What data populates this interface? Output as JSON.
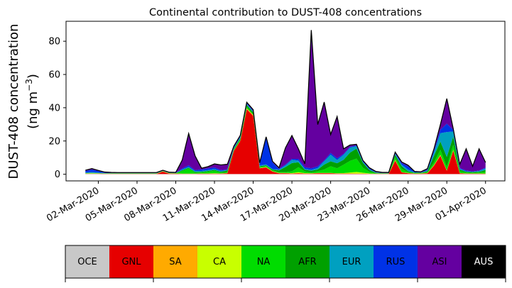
{
  "chart_data": {
    "type": "area",
    "stacked": true,
    "title": "Continental contribution to DUST-408 concentrations",
    "ylabel_line1": "DUST-408 concentration",
    "ylabel_line2": "(ng m",
    "ylabel_exp": "−3",
    "ylabel_close": ")",
    "ylim": [
      -4,
      92
    ],
    "yticks": [
      0,
      20,
      40,
      60,
      80
    ],
    "xlim": [
      "2020-02-28T12:00",
      "2020-04-02T12:00"
    ],
    "xtick_dates": [
      "2020-03-02",
      "2020-03-05",
      "2020-03-08",
      "2020-03-11",
      "2020-03-14",
      "2020-03-17",
      "2020-03-20",
      "2020-03-23",
      "2020-03-26",
      "2020-03-29",
      "2020-04-01"
    ],
    "xtick_labels": [
      "02-Mar-2020",
      "05-Mar-2020",
      "08-Mar-2020",
      "11-Mar-2020",
      "14-Mar-2020",
      "17-Mar-2020",
      "20-Mar-2020",
      "23-Mar-2020",
      "26-Mar-2020",
      "29-Mar-2020",
      "01-Apr-2020"
    ],
    "grid": false,
    "x": [
      "2020-03-01T00:00",
      "2020-03-01T12:00",
      "2020-03-02T00:00",
      "2020-03-02T12:00",
      "2020-03-03T00:00",
      "2020-03-03T12:00",
      "2020-03-04T00:00",
      "2020-03-04T12:00",
      "2020-03-05T00:00",
      "2020-03-05T12:00",
      "2020-03-06T00:00",
      "2020-03-06T12:00",
      "2020-03-07T00:00",
      "2020-03-07T12:00",
      "2020-03-08T00:00",
      "2020-03-08T12:00",
      "2020-03-09T00:00",
      "2020-03-09T12:00",
      "2020-03-10T00:00",
      "2020-03-10T12:00",
      "2020-03-11T00:00",
      "2020-03-11T12:00",
      "2020-03-12T00:00",
      "2020-03-12T12:00",
      "2020-03-13T00:00",
      "2020-03-13T12:00",
      "2020-03-14T00:00",
      "2020-03-14T12:00",
      "2020-03-15T00:00",
      "2020-03-15T12:00",
      "2020-03-16T00:00",
      "2020-03-16T12:00",
      "2020-03-17T00:00",
      "2020-03-17T12:00",
      "2020-03-18T00:00",
      "2020-03-18T12:00",
      "2020-03-19T00:00",
      "2020-03-19T12:00",
      "2020-03-20T00:00",
      "2020-03-20T12:00",
      "2020-03-21T00:00",
      "2020-03-21T12:00",
      "2020-03-22T00:00",
      "2020-03-22T12:00",
      "2020-03-23T00:00",
      "2020-03-23T12:00",
      "2020-03-24T00:00",
      "2020-03-24T12:00",
      "2020-03-25T00:00",
      "2020-03-25T12:00",
      "2020-03-26T00:00",
      "2020-03-26T12:00",
      "2020-03-27T00:00",
      "2020-03-27T12:00",
      "2020-03-28T00:00",
      "2020-03-28T12:00",
      "2020-03-29T00:00",
      "2020-03-29T12:00",
      "2020-03-30T00:00",
      "2020-03-30T12:00",
      "2020-03-31T00:00",
      "2020-03-31T12:00",
      "2020-04-01T00:00"
    ],
    "series": [
      {
        "name": "OCE",
        "color": "#c8c8c8",
        "values": [
          0.2,
          0.2,
          0.2,
          0.1,
          0.1,
          0.1,
          0.1,
          0.1,
          0.1,
          0.1,
          0.1,
          0.1,
          0.1,
          0.1,
          0.1,
          0.1,
          0.1,
          0.1,
          0.1,
          0.1,
          0.1,
          0.1,
          0.1,
          0.1,
          0.1,
          0.1,
          0.1,
          0.1,
          0.1,
          0.1,
          0.1,
          0.1,
          0.1,
          0.1,
          0.1,
          0.1,
          0.1,
          0.1,
          0.1,
          0.1,
          0.1,
          0.1,
          0.1,
          0.1,
          0.1,
          0.1,
          0.1,
          0.1,
          0.1,
          0.1,
          0.1,
          0.1,
          0.1,
          0.1,
          0.1,
          0.1,
          0.1,
          0.1,
          0.1,
          0.1,
          0.1,
          0.1,
          0.1
        ]
      },
      {
        "name": "GNL",
        "color": "#e60000",
        "values": [
          0.1,
          0.1,
          0.1,
          0.1,
          0.1,
          0.1,
          0.1,
          0.1,
          0.1,
          0.1,
          0.1,
          0.1,
          1.5,
          0.3,
          0.2,
          0.1,
          0.1,
          0.1,
          0.2,
          0.2,
          0.2,
          0.2,
          0.5,
          14.0,
          20.0,
          39.0,
          35.0,
          3.5,
          4.0,
          1.5,
          0.5,
          0.5,
          0.3,
          0.5,
          0.3,
          0.3,
          0.5,
          0.5,
          0.5,
          0.3,
          0.3,
          0.3,
          0.2,
          0.2,
          0.1,
          0.1,
          0.1,
          0.1,
          8.0,
          1.0,
          0.5,
          0.2,
          0.2,
          0.5,
          5.0,
          11.0,
          2.0,
          14.0,
          0.5,
          0.2,
          0.2,
          0.2,
          0.2
        ]
      },
      {
        "name": "SA",
        "color": "#ffaa00",
        "values": [
          0.1,
          0.1,
          0.1,
          0.1,
          0.1,
          0.1,
          0.1,
          0.1,
          0.1,
          0.1,
          0.1,
          0.1,
          0.1,
          0.1,
          0.1,
          0.1,
          0.1,
          0.1,
          0.1,
          0.1,
          0.1,
          0.1,
          0.1,
          0.1,
          0.1,
          0.5,
          0.5,
          0.1,
          0.1,
          0.1,
          0.1,
          0.1,
          0.1,
          0.1,
          0.1,
          0.1,
          0.1,
          0.1,
          0.1,
          0.1,
          0.1,
          0.1,
          0.1,
          0.1,
          0.1,
          0.1,
          0.1,
          0.1,
          0.5,
          0.1,
          0.1,
          0.1,
          0.1,
          0.1,
          0.3,
          0.5,
          0.2,
          0.5,
          0.1,
          0.1,
          0.1,
          0.1,
          0.1
        ]
      },
      {
        "name": "CA",
        "color": "#c8ff00",
        "values": [
          0.1,
          0.2,
          0.1,
          0.1,
          0.1,
          0.1,
          0.1,
          0.1,
          0.1,
          0.1,
          0.1,
          0.1,
          0.1,
          0.1,
          0.1,
          0.1,
          0.1,
          0.1,
          0.1,
          0.1,
          0.2,
          0.1,
          0.1,
          0.1,
          0.1,
          0.1,
          0.1,
          0.1,
          0.2,
          0.1,
          0.1,
          0.1,
          0.2,
          0.5,
          0.2,
          0.1,
          0.1,
          0.1,
          0.1,
          0.1,
          0.2,
          0.5,
          1.0,
          0.5,
          0.2,
          0.1,
          0.1,
          0.1,
          0.1,
          0.1,
          0.1,
          0.1,
          0.1,
          0.1,
          0.1,
          0.1,
          0.1,
          0.1,
          0.1,
          0.1,
          0.1,
          0.1,
          0.1
        ]
      },
      {
        "name": "NA",
        "color": "#00dc00",
        "values": [
          0.1,
          0.1,
          0.1,
          0.1,
          0.1,
          0.1,
          0.1,
          0.1,
          0.1,
          0.1,
          0.1,
          0.1,
          0.1,
          0.1,
          0.1,
          1.5,
          3.0,
          0.5,
          0.5,
          1.0,
          1.5,
          0.5,
          0.5,
          0.5,
          1.0,
          1.0,
          0.5,
          0.5,
          0.5,
          0.5,
          0.5,
          0.5,
          1.0,
          3.0,
          1.0,
          0.5,
          1.0,
          2.0,
          4.0,
          3.0,
          5.0,
          7.0,
          8.0,
          3.0,
          1.0,
          0.2,
          0.1,
          0.1,
          1.5,
          2.0,
          0.5,
          0.2,
          0.2,
          0.5,
          1.5,
          3.0,
          2.0,
          3.0,
          1.0,
          0.5,
          0.3,
          0.5,
          1.0
        ]
      },
      {
        "name": "AFR",
        "color": "#00a000",
        "values": [
          0.1,
          0.1,
          0.1,
          0.1,
          0.1,
          0.1,
          0.1,
          0.1,
          0.1,
          0.1,
          0.1,
          0.1,
          0.1,
          0.1,
          0.1,
          0.5,
          0.5,
          0.5,
          0.5,
          0.5,
          0.5,
          0.5,
          1.0,
          0.5,
          0.5,
          1.0,
          1.0,
          0.5,
          0.5,
          0.5,
          1.0,
          3.0,
          5.0,
          3.0,
          1.0,
          1.0,
          1.0,
          3.0,
          3.0,
          3.0,
          3.0,
          5.0,
          6.0,
          3.0,
          1.0,
          0.3,
          0.1,
          0.1,
          1.5,
          1.5,
          0.5,
          0.2,
          0.2,
          0.5,
          4.0,
          5.0,
          6.0,
          5.0,
          1.0,
          0.5,
          0.5,
          0.5,
          1.0
        ]
      },
      {
        "name": "EUR",
        "color": "#00a0c0",
        "values": [
          0.3,
          0.5,
          0.3,
          0.1,
          0.1,
          0.1,
          0.1,
          0.1,
          0.1,
          0.1,
          0.1,
          0.1,
          0.1,
          0.1,
          0.1,
          0.5,
          0.5,
          0.5,
          0.5,
          0.5,
          0.5,
          0.5,
          0.3,
          0.5,
          0.5,
          0.5,
          0.5,
          0.5,
          0.5,
          0.3,
          0.5,
          1.0,
          2.0,
          1.0,
          0.5,
          0.5,
          1.0,
          2.0,
          4.0,
          2.0,
          3.0,
          3.0,
          1.5,
          0.5,
          0.5,
          0.2,
          0.1,
          0.1,
          0.5,
          1.0,
          1.0,
          0.2,
          0.1,
          0.5,
          2.0,
          5.0,
          15.0,
          3.0,
          0.5,
          0.2,
          0.2,
          0.5,
          1.0
        ]
      },
      {
        "name": "RUS",
        "color": "#0032e6",
        "values": [
          1.0,
          1.5,
          1.0,
          0.3,
          0.1,
          0.1,
          0.1,
          0.1,
          0.1,
          0.1,
          0.1,
          0.1,
          0.1,
          0.1,
          0.1,
          0.5,
          1.0,
          0.5,
          1.0,
          1.0,
          1.0,
          0.5,
          0.3,
          0.5,
          0.5,
          0.5,
          0.5,
          1.0,
          16.0,
          4.0,
          0.5,
          0.5,
          0.5,
          1.0,
          1.0,
          1.0,
          1.0,
          0.5,
          1.0,
          1.0,
          0.5,
          0.5,
          0.5,
          0.5,
          0.5,
          0.2,
          0.1,
          0.1,
          0.5,
          1.0,
          2.0,
          0.3,
          0.1,
          0.5,
          1.0,
          2.0,
          5.0,
          1.0,
          0.5,
          0.5,
          0.2,
          0.2,
          0.5
        ]
      },
      {
        "name": "ASI",
        "color": "#6400a0",
        "values": [
          0.3,
          0.5,
          0.2,
          0.2,
          0.2,
          0.1,
          0.1,
          0.1,
          0.1,
          0.1,
          0.1,
          0.1,
          0.1,
          0.1,
          0.1,
          5.0,
          19.0,
          8.5,
          0.5,
          1.0,
          2.0,
          3.0,
          3.0,
          0.5,
          0.5,
          0.5,
          0.5,
          0.5,
          0.5,
          0.5,
          0.5,
          10.0,
          14.0,
          6.0,
          2.0,
          83.0,
          25.0,
          35.0,
          11.0,
          25.0,
          3.0,
          1.0,
          0.5,
          0.3,
          0.3,
          0.3,
          0.2,
          0.2,
          0.5,
          0.5,
          0.5,
          0.2,
          0.3,
          0.5,
          1.0,
          3.0,
          15.0,
          0.5,
          2.0,
          13.0,
          3.0,
          13.0,
          3.0
        ]
      },
      {
        "name": "AUS",
        "color": "#000000",
        "values": [
          0.1,
          0.1,
          0.1,
          0.1,
          0.1,
          0.1,
          0.1,
          0.1,
          0.1,
          0.1,
          0.1,
          0.1,
          0.1,
          0.1,
          0.1,
          0.1,
          0.1,
          0.1,
          0.1,
          0.1,
          0.1,
          0.1,
          0.1,
          0.1,
          0.1,
          0.1,
          0.1,
          0.1,
          0.1,
          0.1,
          0.1,
          0.1,
          0.1,
          0.1,
          0.1,
          0.1,
          0.1,
          0.1,
          0.1,
          0.1,
          0.1,
          0.1,
          0.1,
          0.1,
          0.1,
          0.1,
          0.1,
          0.1,
          0.1,
          0.1,
          0.1,
          0.1,
          0.1,
          0.1,
          0.1,
          0.1,
          0.1,
          0.1,
          0.1,
          0.1,
          0.1,
          0.1,
          0.1
        ]
      }
    ],
    "legend_placement": "bottom colorbar"
  }
}
